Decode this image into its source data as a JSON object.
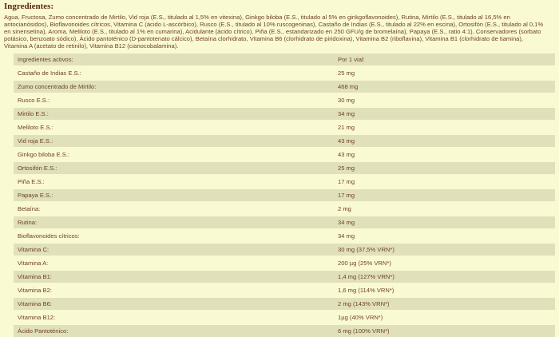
{
  "colors": {
    "bg": "#fafad2",
    "rowShaded": "#e0e1ba",
    "rowLight": "#fafad2",
    "headingText": "#5a2b0e",
    "bodyText": "#6e4226"
  },
  "section": {
    "title": "Ingredientes:",
    "description": "Agua, Fructosa, Zumo concentrado de Mirtilo, Vid roja (E.S., titulado al 1,5% en vitexina), Ginkgo biloba (E.S., titulado al 5% en ginkgoflavonoides), Rutina, Mirtilo (E.S., titulado al 16,5% en antocianósidos), Bioflavonoides cítricos, Vitamina C (ácido L-ascórbico), Rusco (E.S., titulado al 10% ruscogeninas), Castaño de Indias (E.S., titulado al 22% en escina), Ortosifón (E.S., titulado al 0,1% en sinensetina), Aroma, Meliloto (E.S., titulado al 1% en cumarina), Acidulante (ácido cítrico), Piña (E.S., estandarizado en 250 GFU/g de bromelaína), Papaya (E.S., ratio 4:1), Conservadores (sorbato potásico, benzoato sódico), Ácido pantoténico (D-pantotenato cálcico), Betaína clorhidrato, Vitamina B6 (clorhidrato de piridoxina), Vitamina B2 (riboflavina), Vitamina B1 (clorhidrato de tiamina), Vitamina A (acetato de retinilo), Vitamina B12 (cianocobalamina)."
  },
  "table": {
    "header": {
      "ingredient": "Ingredientes activos:",
      "amount": "Por 1 vial:"
    },
    "rows": [
      {
        "ingredient": "Castaño de Indias E.S.:",
        "amount": "25 mg"
      },
      {
        "ingredient": "Zumo concentrado de Mirtilo:",
        "amount": "468 mg"
      },
      {
        "ingredient": "Rusco E.S.:",
        "amount": "30 mg"
      },
      {
        "ingredient": "Mirtilo E.S.:",
        "amount": "34 mg"
      },
      {
        "ingredient": "Meliloto E.S.:",
        "amount": "21 mg"
      },
      {
        "ingredient": "Vid roja E.S.:",
        "amount": "43 mg"
      },
      {
        "ingredient": "Ginkgo biloba E.S.:",
        "amount": "43 mg"
      },
      {
        "ingredient": "Ortosifón E.S.:",
        "amount": "25 mg"
      },
      {
        "ingredient": "Piña E.S.:",
        "amount": "17 mg"
      },
      {
        "ingredient": "Papaya E.S.:",
        "amount": "17 mg"
      },
      {
        "ingredient": "Betaína:",
        "amount": "2 mg"
      },
      {
        "ingredient": "Rutina:",
        "amount": "34 mg"
      },
      {
        "ingredient": "Bioflavonoides cítricos:",
        "amount": "34 mg"
      },
      {
        "ingredient": "Vitamina C:",
        "amount": "30 mg (37,5% VRN*)"
      },
      {
        "ingredient": "Vitamina A:",
        "amount": "200 µg (25% VRN*)"
      },
      {
        "ingredient": "Vitamina B1:",
        "amount": "1,4 mg (127% VRN*)"
      },
      {
        "ingredient": "Vitamina B2:",
        "amount": "1,6 mg (114% VRN*)"
      },
      {
        "ingredient": "Vitamina B6:",
        "amount": "2 mg (143% VRN*)"
      },
      {
        "ingredient": "Vitamina B12:",
        "amount": "1µg (40% VRN*)"
      },
      {
        "ingredient": "Ácido Pantoténico:",
        "amount": "6 mg (100% VRN*)"
      }
    ]
  }
}
